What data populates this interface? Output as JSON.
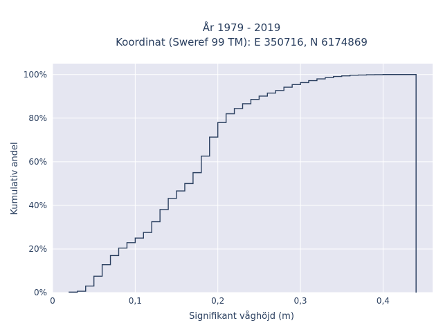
{
  "chart_data": {
    "type": "line",
    "subtype": "step-ecdf",
    "title_line1": "År 1979 - 2019",
    "title_line2": "Koordinat (Sweref 99 TM): E 350716, N 6174869",
    "xlabel": "Signifikant våghöjd (m)",
    "ylabel": "Kumulativ andel",
    "xlim": [
      0,
      0.46
    ],
    "ylim": [
      0,
      1.05
    ],
    "x_ticks": [
      0,
      0.1,
      0.2,
      0.3,
      0.4
    ],
    "x_tick_labels": [
      "0",
      "0,1",
      "0,2",
      "0,3",
      "0,4"
    ],
    "y_ticks": [
      0,
      0.2,
      0.4,
      0.6,
      0.8,
      1.0
    ],
    "y_tick_labels": [
      "0%",
      "20%",
      "40%",
      "60%",
      "80%",
      "100%"
    ],
    "grid": true,
    "background_color": "#e5e6f1",
    "line_color": "#2a3f5f",
    "x": [
      0.02,
      0.03,
      0.04,
      0.05,
      0.06,
      0.07,
      0.08,
      0.09,
      0.1,
      0.11,
      0.12,
      0.13,
      0.14,
      0.15,
      0.16,
      0.17,
      0.18,
      0.19,
      0.2,
      0.21,
      0.22,
      0.23,
      0.24,
      0.25,
      0.26,
      0.27,
      0.28,
      0.29,
      0.3,
      0.31,
      0.32,
      0.33,
      0.34,
      0.35,
      0.36,
      0.37,
      0.38,
      0.39,
      0.4,
      0.41,
      0.42,
      0.43,
      0.44
    ],
    "y": [
      0.002,
      0.006,
      0.03,
      0.075,
      0.128,
      0.17,
      0.204,
      0.229,
      0.25,
      0.276,
      0.325,
      0.381,
      0.432,
      0.466,
      0.5,
      0.55,
      0.626,
      0.713,
      0.78,
      0.82,
      0.844,
      0.866,
      0.886,
      0.901,
      0.915,
      0.927,
      0.942,
      0.954,
      0.963,
      0.972,
      0.98,
      0.986,
      0.991,
      0.994,
      0.997,
      0.998,
      0.999,
      0.9995,
      1.0,
      1.0,
      1.0,
      1.0,
      1.0
    ]
  }
}
